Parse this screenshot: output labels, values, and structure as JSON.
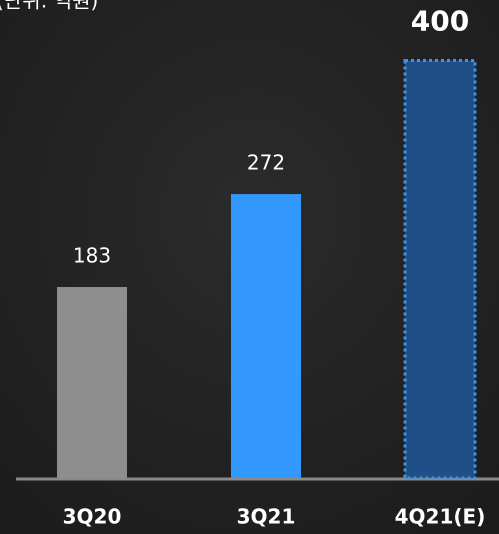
{
  "chart_data": {
    "type": "bar",
    "subtitle": "(단위: 억원)",
    "categories": [
      "3Q20",
      "3Q21",
      "4Q21(E)"
    ],
    "values": [
      183,
      272,
      400
    ],
    "colors": [
      "#8e8e8e",
      "#3399ff",
      "#1f4f86"
    ],
    "dashed": [
      false,
      false,
      true
    ],
    "ylim": [
      0,
      458
    ]
  }
}
